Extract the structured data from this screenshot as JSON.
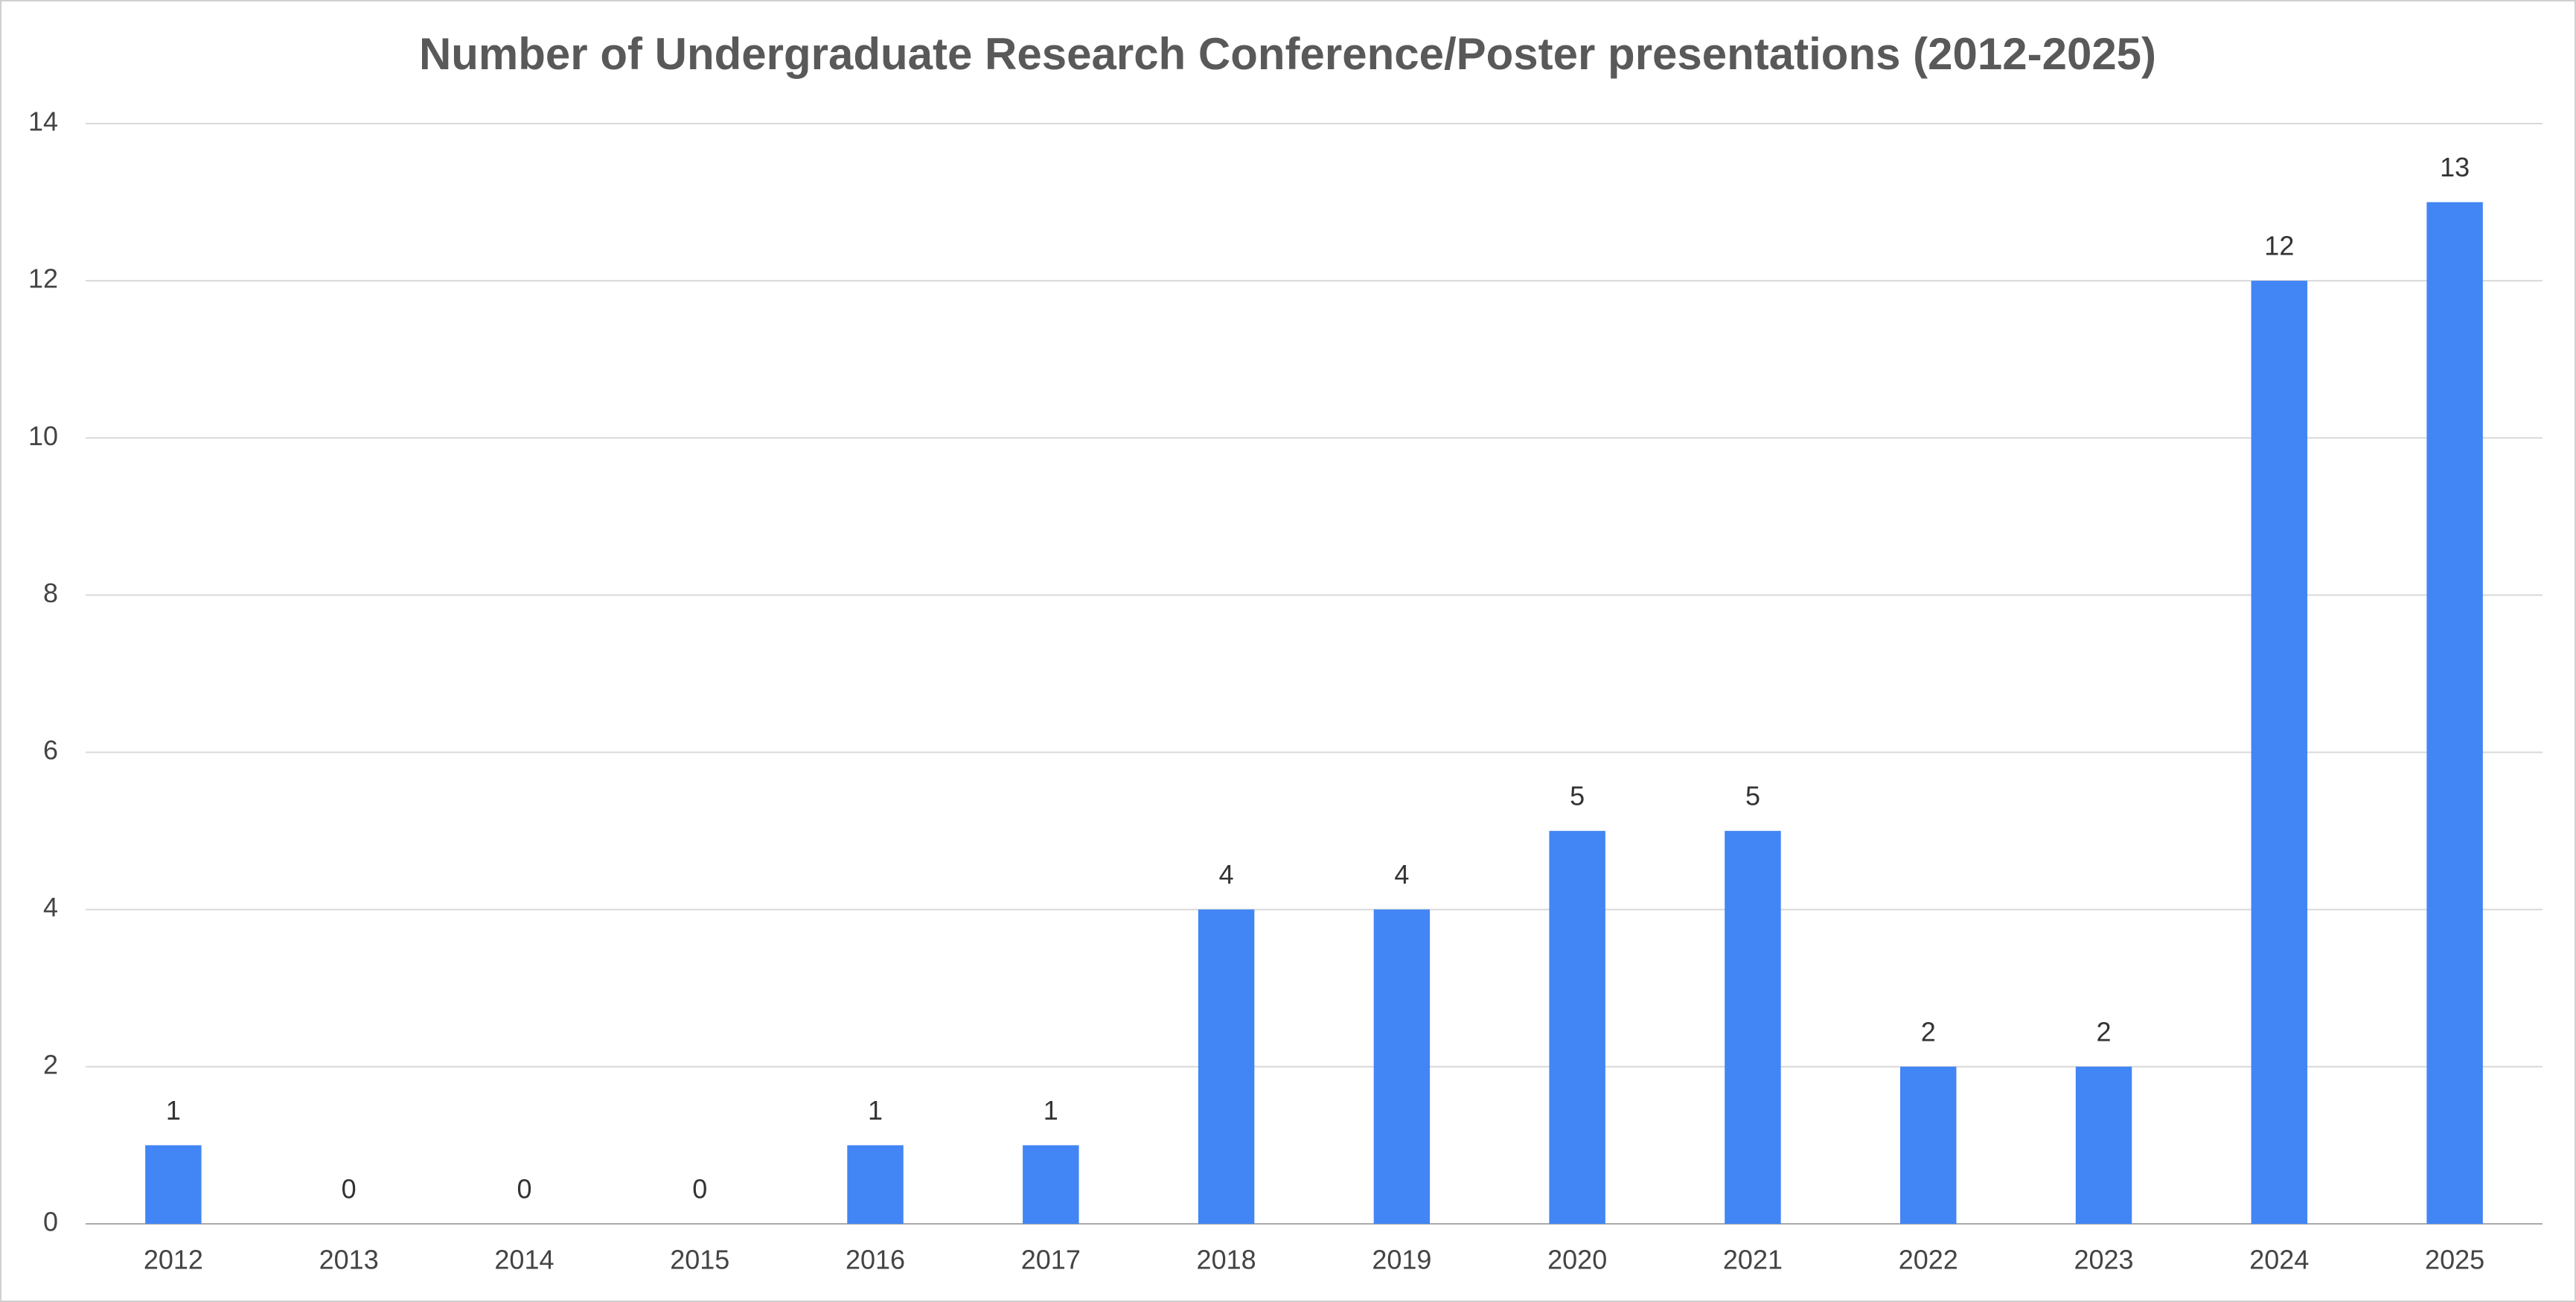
{
  "chart_data": {
    "type": "bar",
    "title": "Number of Undergraduate Research Conference/Poster presentations (2012-2025)",
    "categories": [
      "2012",
      "2013",
      "2014",
      "2015",
      "2016",
      "2017",
      "2018",
      "2019",
      "2020",
      "2021",
      "2022",
      "2023",
      "2024",
      "2025"
    ],
    "values": [
      1,
      0,
      0,
      0,
      1,
      1,
      4,
      4,
      5,
      5,
      2,
      2,
      12,
      13
    ],
    "color": "#4285f4",
    "ylim": [
      0,
      14
    ],
    "yticks": [
      0,
      2,
      4,
      6,
      8,
      10,
      12,
      14
    ],
    "grid": true,
    "data_labels": true
  }
}
